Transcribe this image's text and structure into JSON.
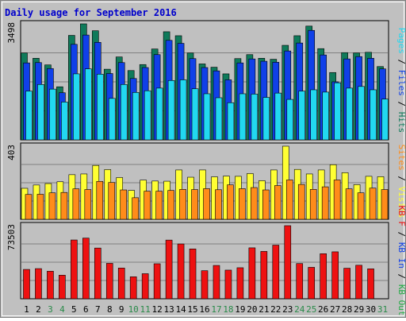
{
  "chart_data": {
    "title": "Daily usage for September 2016",
    "categories": [
      "1",
      "2",
      "3",
      "4",
      "5",
      "6",
      "7",
      "8",
      "9",
      "10",
      "11",
      "12",
      "13",
      "14",
      "15",
      "16",
      "17",
      "18",
      "19",
      "20",
      "21",
      "22",
      "23",
      "24",
      "25",
      "26",
      "27",
      "28",
      "29",
      "30",
      "31"
    ],
    "weekend_categories": [
      "3",
      "4",
      "10",
      "11",
      "17",
      "18",
      "24",
      "25",
      "31"
    ],
    "colors": {
      "hits": "#0f7a5a",
      "files": "#1040e8",
      "pages": "#22d8f0",
      "visits": "#ffff33",
      "sites": "#ff8c1a",
      "kbf": "#ee1111",
      "background": "#c0c0c0",
      "title": "#0000cc",
      "weekend_label": "#2a8a4a"
    },
    "panels": [
      {
        "type": "bar",
        "ymax": 3498,
        "ymax_label": "3498",
        "label_parts": [
          {
            "text": "Pages",
            "color": "#22d8f0"
          },
          {
            "text": " / ",
            "color": "#000000"
          },
          {
            "text": "Files",
            "color": "#1040e8"
          },
          {
            "text": " / ",
            "color": "#000000"
          },
          {
            "text": "Hits",
            "color": "#0f7a5a"
          }
        ],
        "series": [
          {
            "name": "Hits",
            "color": "#0f7a5a",
            "values": [
              2620,
              2460,
              2260,
              1600,
              3150,
              3498,
              3290,
              2130,
              2500,
              2090,
              2270,
              2740,
              3260,
              3140,
              2620,
              2290,
              2190,
              1990,
              2450,
              2570,
              2460,
              2430,
              2850,
              3140,
              3430,
              2750,
              2030,
              2630,
              2620,
              2640,
              2210
            ]
          },
          {
            "name": "Files",
            "color": "#1040e8",
            "values": [
              2320,
              2330,
              2150,
              1420,
              2880,
              3160,
              2940,
              2000,
              2330,
              1850,
              2180,
              2570,
              3000,
              2910,
              2450,
              2180,
              2080,
              1810,
              2320,
              2440,
              2370,
              2340,
              2680,
              2920,
              3300,
              2560,
              1750,
              2440,
              2510,
              2460,
              2140
            ]
          },
          {
            "name": "Pages",
            "color": "#22d8f0",
            "values": [
              1470,
              1670,
              1530,
              1140,
              1990,
              2140,
              1980,
              1250,
              1670,
              1430,
              1480,
              1560,
              1790,
              1810,
              1540,
              1390,
              1270,
              1120,
              1390,
              1380,
              1280,
              1410,
              1220,
              1470,
              1510,
              1440,
              1720,
              1560,
              1610,
              1510,
              1230
            ]
          }
        ]
      },
      {
        "type": "bar",
        "ymax": 403,
        "ymax_label": "403",
        "label_parts": [
          {
            "text": "Sites",
            "color": "#ff8c1a"
          },
          {
            "text": " / ",
            "color": "#000000"
          },
          {
            "text": "Visits",
            "color": "#ffff33"
          }
        ],
        "series": [
          {
            "name": "Visits",
            "color": "#ffff33",
            "values": [
              171,
              189,
              197,
              207,
              246,
              250,
              297,
              274,
              230,
              159,
              216,
              211,
              210,
              272,
              232,
              272,
              234,
              238,
              237,
              252,
              213,
              272,
              403,
              275,
              250,
              272,
              301,
              257,
              191,
              237,
              235
            ]
          },
          {
            "name": "Sites",
            "color": "#ff8c1a",
            "values": [
              137,
              138,
              146,
              148,
              168,
              164,
              209,
              203,
              162,
              119,
              155,
              155,
              159,
              165,
              164,
              169,
              163,
              190,
              169,
              175,
              162,
              186,
              217,
              192,
              165,
              179,
              217,
              168,
              146,
              172,
              164
            ]
          }
        ]
      },
      {
        "type": "bar",
        "ymax": 73503,
        "ymax_label": "73503",
        "label_parts": [
          {
            "text": "KB F",
            "color": "#ee1111"
          },
          {
            "text": " / ",
            "color": "#000000"
          },
          {
            "text": "KB In",
            "color": "#1040e8"
          },
          {
            "text": " / ",
            "color": "#000000"
          },
          {
            "text": "KB Out",
            "color": "#22aa44"
          }
        ],
        "series": [
          {
            "name": "KB F",
            "color": "#ee1111",
            "values": [
              29500,
              30300,
              27700,
              23700,
              59100,
              61000,
              51000,
              35600,
              30900,
              22100,
              25200,
              35200,
              59000,
              55100,
              50100,
              28200,
              33500,
              28800,
              31200,
              51200,
              47600,
              53900,
              73503,
              35400,
              31600,
              45300,
              47200,
              30700,
              33700,
              30100,
              0
            ]
          }
        ]
      }
    ],
    "xlabel": "",
    "ylabel": ""
  }
}
